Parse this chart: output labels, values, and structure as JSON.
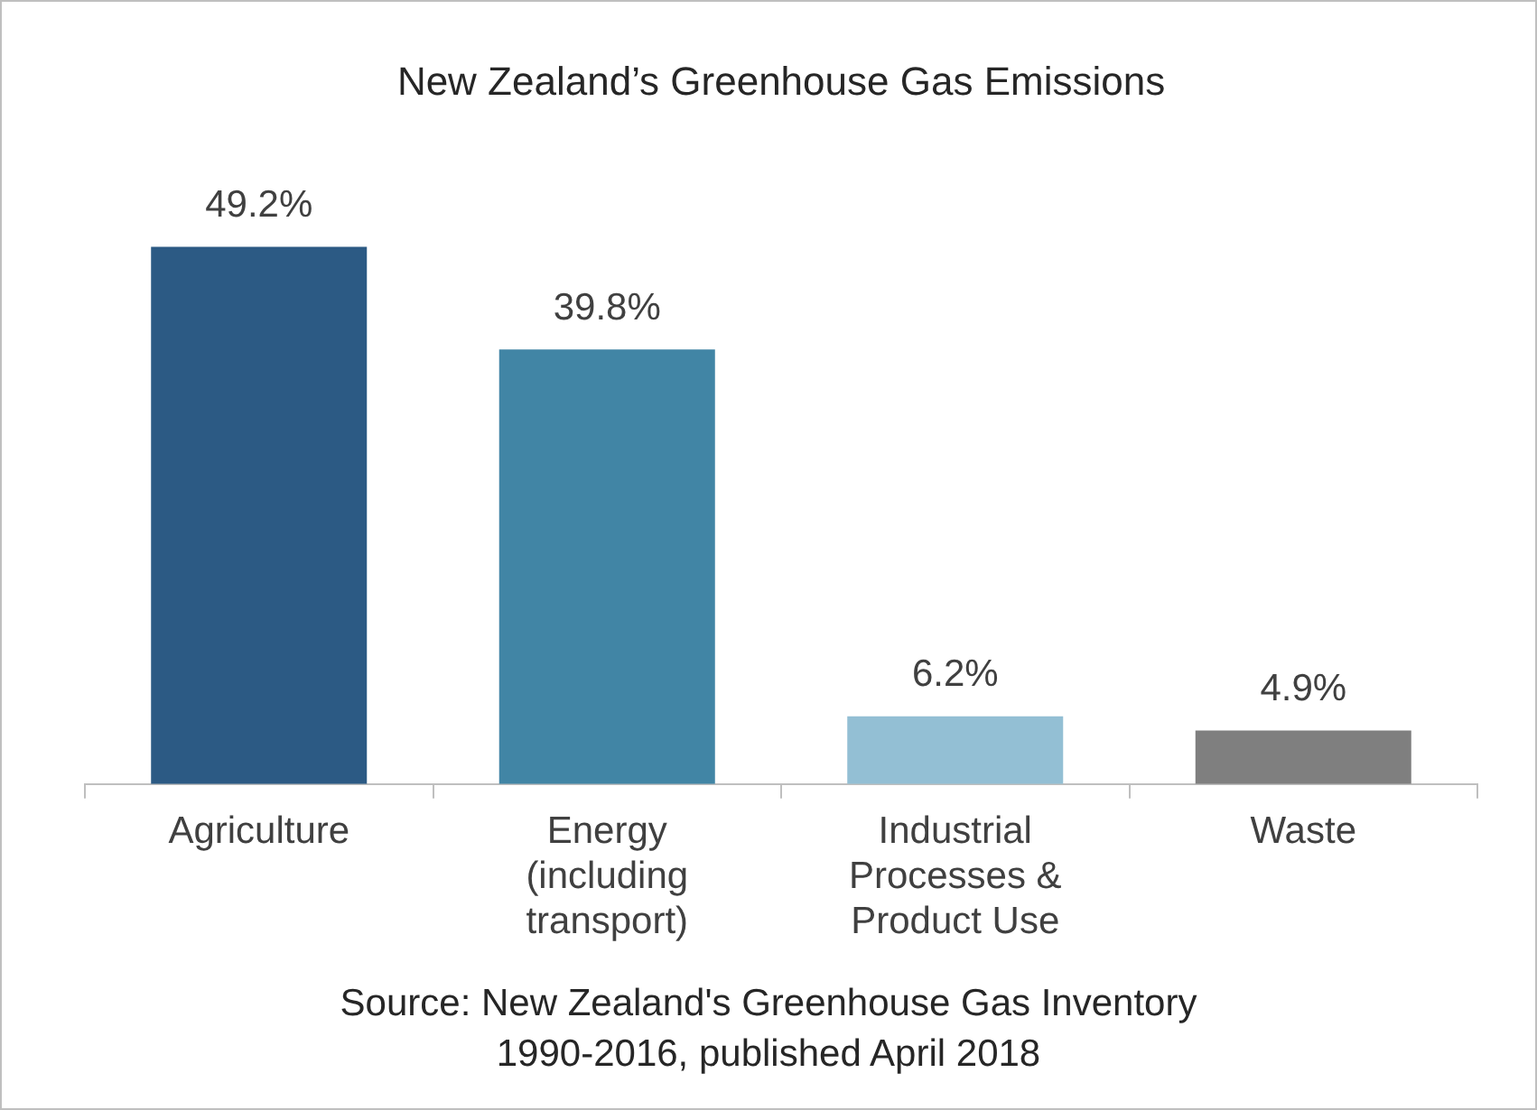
{
  "chart_data": {
    "type": "bar",
    "title": "New Zealand’s Greenhouse Gas Emissions",
    "categories": [
      "Agriculture",
      "Energy (including transport)",
      "Industrial Processes & Product Use",
      "Waste"
    ],
    "values": [
      49.2,
      39.8,
      6.2,
      4.9
    ],
    "colors": [
      "#2c5a84",
      "#4185a5",
      "#93bfd4",
      "#7f7f7f"
    ],
    "value_labels": [
      "49.2%",
      "39.8%",
      "6.2%",
      "4.9%"
    ],
    "legend": false,
    "annotations": [
      "Source: New Zealand's Greenhouse Gas Inventory 1990-2016, published April 2018"
    ]
  }
}
